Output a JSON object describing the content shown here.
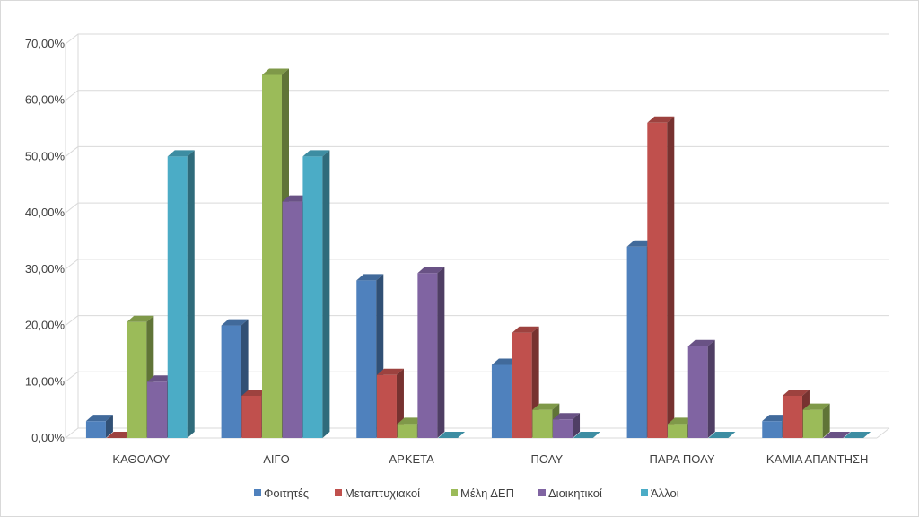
{
  "chart_data": {
    "type": "bar",
    "categories": [
      "ΚΑΘΟΛΟΥ",
      "ΛΙΓΟ",
      "ΑΡΚΕΤΑ",
      "ΠΟΛΥ",
      "ΠΑΡΑ ΠΟΛΥ",
      "ΚΑΜΙΑ ΑΠΑΝΤΗΣΗ"
    ],
    "series": [
      {
        "name": "Φοιτητές",
        "color": "#4f81bd",
        "values": [
          3.0,
          20.0,
          28.0,
          13.0,
          34.0,
          3.0
        ]
      },
      {
        "name": "Μεταπτυχιακοί",
        "color": "#c0504d",
        "values": [
          0.0,
          7.5,
          11.2,
          18.7,
          56.0,
          7.5
        ]
      },
      {
        "name": "Μέλη ΔΕΠ",
        "color": "#9bbb59",
        "values": [
          20.6,
          64.5,
          2.5,
          5.0,
          2.5,
          5.0
        ]
      },
      {
        "name": "Διοικητικοί",
        "color": "#8064a2",
        "values": [
          10.0,
          42.0,
          29.3,
          3.3,
          16.3,
          0.0
        ]
      },
      {
        "name": "Άλλοι",
        "color": "#4bacc6",
        "values": [
          50.0,
          50.0,
          0.0,
          0.0,
          0.0,
          0.0
        ]
      }
    ],
    "y_ticks": [
      "0,00%",
      "10,00%",
      "20,00%",
      "30,00%",
      "40,00%",
      "50,00%",
      "60,00%",
      "70,00%"
    ],
    "ylim": [
      0,
      70
    ],
    "grid": true,
    "legend_position": "bottom",
    "title": "",
    "xlabel": "",
    "ylabel": ""
  }
}
